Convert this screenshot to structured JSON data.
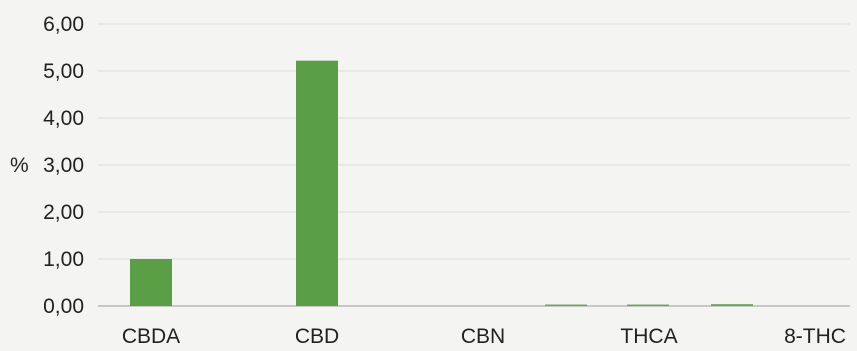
{
  "chart_data": {
    "type": "bar",
    "title": "",
    "xlabel": "",
    "ylabel": "%",
    "ylim": [
      0,
      6
    ],
    "yticks": [
      "0,00",
      "1,00",
      "2,00",
      "3,00",
      "4,00",
      "5,00",
      "6,00"
    ],
    "grid": true,
    "legend": "none",
    "bar_color": "#5a9e46",
    "categories": [
      "CBDA",
      "CBD",
      "CBN",
      "THCA",
      "8-THC"
    ],
    "values": [
      1.0,
      5.22,
      0.0,
      0.0,
      0.0
    ],
    "minor_bars": [
      {
        "between": [
          "CBN",
          "THCA"
        ],
        "value": 0.03
      },
      {
        "between": [
          "THCA",
          "8-THC"
        ],
        "value": 0.01
      },
      {
        "between": [
          "8-THC",
          null
        ],
        "value": 0.04
      }
    ]
  }
}
